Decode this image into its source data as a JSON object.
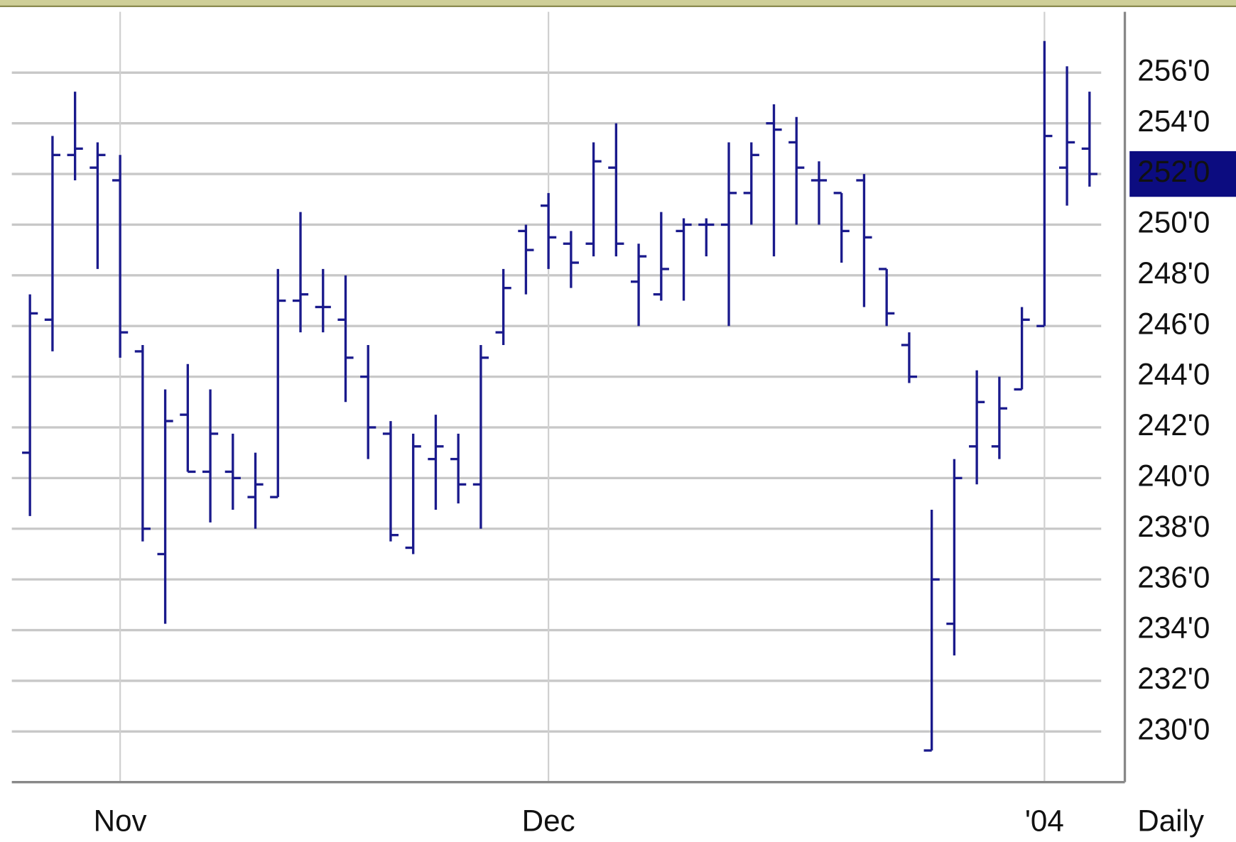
{
  "chart_data": {
    "type": "ohlc",
    "color": "#1a1a8c",
    "grid": true,
    "period": "Daily",
    "categories": [
      null,
      null,
      null,
      null,
      "Nov",
      null,
      null,
      null,
      null,
      null,
      null,
      null,
      null,
      null,
      null,
      null,
      null,
      null,
      null,
      null,
      null,
      null,
      null,
      "Dec",
      null,
      null,
      null,
      null,
      null,
      null,
      null,
      null,
      null,
      null,
      null,
      null,
      null,
      null,
      null,
      null,
      null,
      null,
      null,
      null,
      null,
      "'04",
      null,
      null
    ],
    "open": [
      241,
      246.25,
      252.75,
      252.25,
      251.75,
      245,
      237,
      242.5,
      240.25,
      240.25,
      239.25,
      239.25,
      247,
      246.75,
      246.25,
      244,
      241.75,
      237.25,
      240.75,
      240.75,
      239.75,
      245.75,
      249.75,
      250.75,
      249.25,
      249.25,
      252.25,
      247.75,
      247.25,
      249.75,
      250,
      250,
      251.25,
      254,
      253.25,
      251.75,
      251.25,
      251.75,
      248.25,
      245.25,
      229.25,
      234.25,
      241.25,
      241.25,
      243.5,
      246,
      252.25,
      253
    ],
    "high": [
      247.25,
      253.5,
      255.25,
      253.25,
      252.75,
      245.25,
      243.5,
      244.5,
      243.5,
      241.75,
      241,
      248.25,
      250.5,
      248.25,
      248,
      245.25,
      242.25,
      241.75,
      242.5,
      241.75,
      245.25,
      248.25,
      250,
      251.25,
      249.75,
      253.25,
      254,
      249.25,
      250.5,
      250.25,
      250.25,
      253.25,
      253.25,
      254.75,
      254.25,
      252.5,
      251.25,
      252,
      248.25,
      245.75,
      238.75,
      240.75,
      244.25,
      244,
      246.75,
      257.25,
      256.25,
      255.25
    ],
    "low": [
      238.5,
      245,
      251.75,
      248.25,
      244.75,
      237.5,
      234.25,
      240.25,
      238.25,
      238.75,
      238,
      239.25,
      245.75,
      245.75,
      243,
      240.75,
      237.5,
      237,
      238.75,
      239,
      238,
      245.25,
      247.25,
      248.25,
      247.5,
      248.75,
      248.75,
      246,
      247,
      247,
      248.75,
      246,
      250,
      248.75,
      250,
      250,
      248.5,
      246.75,
      246,
      243.75,
      229.25,
      233,
      239.75,
      240.75,
      243.5,
      246,
      250.75,
      251.5
    ],
    "close": [
      246.5,
      252.75,
      253,
      252.75,
      245.75,
      238,
      242.25,
      240.25,
      241.75,
      240,
      239.75,
      247,
      247.25,
      246.75,
      244.75,
      242,
      237.75,
      241.25,
      241.25,
      239.75,
      244.75,
      247.5,
      249,
      249.5,
      248.5,
      252.5,
      249.25,
      248.75,
      248.25,
      250,
      250,
      251.25,
      252.75,
      253.75,
      252.25,
      251.75,
      249.75,
      249.5,
      246.5,
      244,
      236,
      240,
      243,
      242.75,
      246.25,
      253.5,
      253.25,
      252
    ],
    "last_price": 252,
    "ylim": [
      228,
      258.4
    ],
    "yticks": [
      {
        "value": 230,
        "label": "230'0"
      },
      {
        "value": 232,
        "label": "232'0"
      },
      {
        "value": 234,
        "label": "234'0"
      },
      {
        "value": 236,
        "label": "236'0"
      },
      {
        "value": 238,
        "label": "238'0"
      },
      {
        "value": 240,
        "label": "240'0"
      },
      {
        "value": 242,
        "label": "242'0"
      },
      {
        "value": 244,
        "label": "244'0"
      },
      {
        "value": 246,
        "label": "246'0"
      },
      {
        "value": 248,
        "label": "248'0"
      },
      {
        "value": 250,
        "label": "250'0"
      },
      {
        "value": 252,
        "label": "252'0"
      },
      {
        "value": 254,
        "label": "254'0"
      },
      {
        "value": 256,
        "label": "256'0"
      }
    ]
  }
}
